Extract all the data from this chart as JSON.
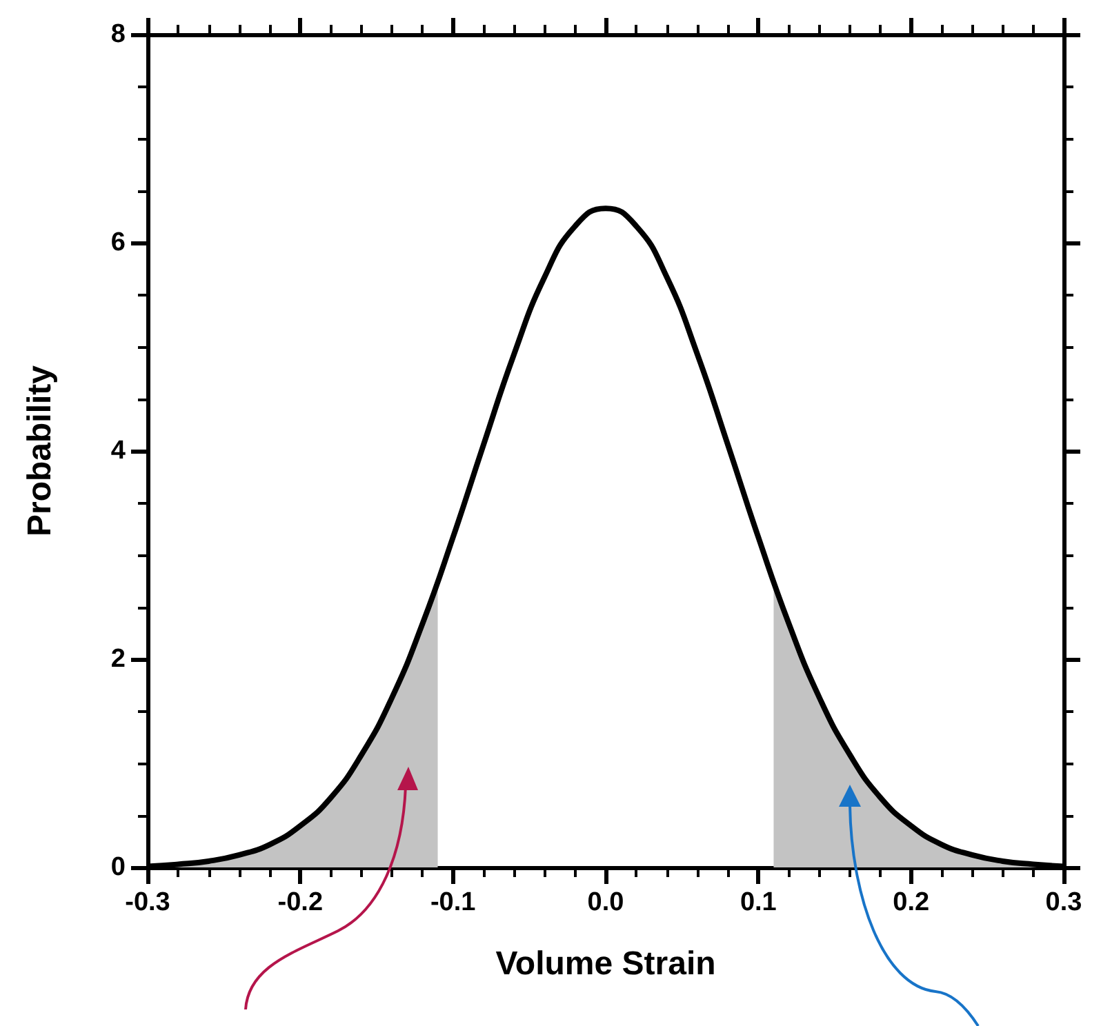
{
  "chart_data": {
    "type": "line",
    "xlabel": "Volume Strain",
    "ylabel": "Probability",
    "xlim": [
      -0.3,
      0.3
    ],
    "ylim": [
      0,
      8
    ],
    "xticks": [
      -0.3,
      -0.2,
      -0.1,
      {
        "value": 0,
        "label": "0.0"
      },
      0.1,
      0.2,
      0.3
    ],
    "yticks": [
      0,
      2,
      4,
      6,
      8
    ],
    "series": [
      {
        "type": "area",
        "color": "#c3c3c3",
        "x": [
          -0.3,
          -0.28,
          -0.26,
          -0.24,
          -0.22,
          -0.2,
          -0.18,
          -0.16,
          -0.14,
          -0.12,
          -0.11
        ],
        "values": [
          0.01,
          0.03,
          0.06,
          0.12,
          0.22,
          0.4,
          0.67,
          1.08,
          1.63,
          2.34,
          2.74
        ]
      },
      {
        "type": "area",
        "color": "#c3c3c3",
        "x": [
          0.11,
          0.12,
          0.14,
          0.16,
          0.18,
          0.2,
          0.22,
          0.24,
          0.26,
          0.28,
          0.3
        ],
        "values": [
          2.74,
          2.34,
          1.63,
          1.08,
          0.67,
          0.4,
          0.22,
          0.12,
          0.06,
          0.03,
          0.01
        ]
      },
      {
        "color": "#000000",
        "x": [
          -0.3,
          -0.28,
          -0.26,
          -0.24,
          -0.22,
          -0.2,
          -0.18,
          -0.16,
          -0.14,
          -0.12,
          -0.1,
          -0.08,
          -0.06,
          -0.04,
          -0.02,
          0,
          0.02,
          0.04,
          0.06,
          0.08,
          0.1,
          0.12,
          0.14,
          0.16,
          0.18,
          0.2,
          0.22,
          0.24,
          0.26,
          0.28,
          0.3
        ],
        "values": [
          0.01,
          0.03,
          0.06,
          0.12,
          0.22,
          0.4,
          0.67,
          1.08,
          1.63,
          2.34,
          3.17,
          4.06,
          4.93,
          5.67,
          6.16,
          6.33,
          6.16,
          5.67,
          4.93,
          4.06,
          3.17,
          2.34,
          1.63,
          1.08,
          0.67,
          0.4,
          0.22,
          0.12,
          0.06,
          0.03,
          0.01
        ]
      }
    ]
  }
}
